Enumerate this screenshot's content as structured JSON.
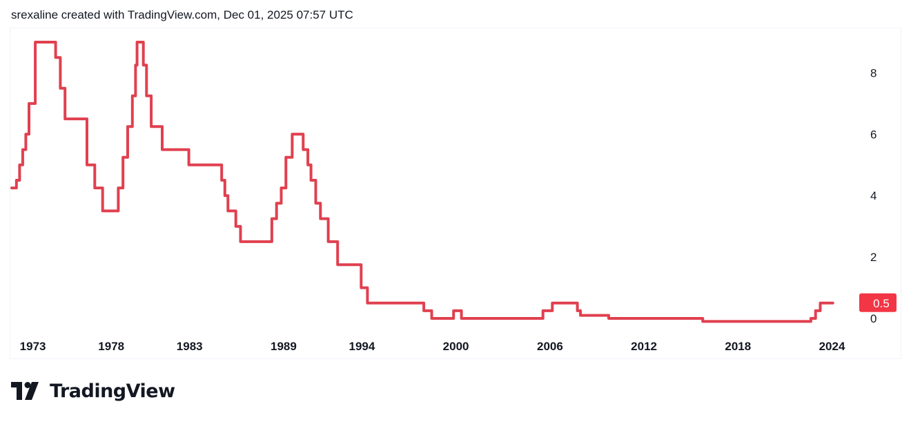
{
  "header": {
    "caption": "srexaline created with TradingView.com, Dec 01, 2025 07:57 UTC"
  },
  "brand": {
    "name": "TradingView",
    "logo_icon": "tradingview-logo-icon"
  },
  "colors": {
    "line": "#e0404f",
    "last_label_bg": "#f23645",
    "text": "#131722",
    "border": "#f0f3fa"
  },
  "chart_data": {
    "type": "line",
    "title": "",
    "xlabel": "",
    "ylabel": "",
    "x_ticks": [
      "1973",
      "1978",
      "1983",
      "1989",
      "1994",
      "2000",
      "2006",
      "2012",
      "2018",
      "2024"
    ],
    "y_ticks": [
      "0",
      "2",
      "4",
      "6",
      "8"
    ],
    "ylim": [
      0,
      9
    ],
    "xlim": [
      1972.0,
      2026.0
    ],
    "last_value_label": "0.5",
    "grid": false,
    "y_axis_position": "right",
    "series": [
      {
        "step": true,
        "points": [
          [
            1972.0,
            4.25
          ],
          [
            1972.3,
            4.5
          ],
          [
            1972.5,
            5.0
          ],
          [
            1972.7,
            5.5
          ],
          [
            1972.9,
            6.0
          ],
          [
            1973.1,
            7.0
          ],
          [
            1973.5,
            9.0
          ],
          [
            1974.8,
            8.5
          ],
          [
            1975.1,
            7.5
          ],
          [
            1975.4,
            6.5
          ],
          [
            1976.8,
            5.0
          ],
          [
            1977.3,
            4.25
          ],
          [
            1977.8,
            3.5
          ],
          [
            1978.8,
            4.25
          ],
          [
            1979.1,
            5.25
          ],
          [
            1979.4,
            6.25
          ],
          [
            1979.7,
            7.25
          ],
          [
            1979.9,
            8.25
          ],
          [
            1980.0,
            9.0
          ],
          [
            1980.4,
            8.25
          ],
          [
            1980.6,
            7.25
          ],
          [
            1980.9,
            6.25
          ],
          [
            1981.6,
            5.5
          ],
          [
            1983.3,
            5.0
          ],
          [
            1985.4,
            4.5
          ],
          [
            1985.6,
            4.0
          ],
          [
            1985.8,
            3.5
          ],
          [
            1986.3,
            3.0
          ],
          [
            1986.6,
            2.5
          ],
          [
            1988.6,
            3.25
          ],
          [
            1988.9,
            3.75
          ],
          [
            1989.2,
            4.25
          ],
          [
            1989.5,
            5.25
          ],
          [
            1989.9,
            6.0
          ],
          [
            1990.6,
            5.5
          ],
          [
            1990.9,
            5.0
          ],
          [
            1991.1,
            4.5
          ],
          [
            1991.4,
            3.75
          ],
          [
            1991.7,
            3.25
          ],
          [
            1992.2,
            2.5
          ],
          [
            1992.8,
            1.75
          ],
          [
            1994.3,
            1.0
          ],
          [
            1994.7,
            0.5
          ],
          [
            1998.3,
            0.25
          ],
          [
            1998.8,
            0.0
          ],
          [
            2000.2,
            0.25
          ],
          [
            2000.7,
            0.0
          ],
          [
            2005.9,
            0.25
          ],
          [
            2006.5,
            0.5
          ],
          [
            2008.1,
            0.25
          ],
          [
            2008.3,
            0.1
          ],
          [
            2010.1,
            0.0
          ],
          [
            2016.1,
            -0.1
          ],
          [
            2023.0,
            0.0
          ],
          [
            2023.3,
            0.25
          ],
          [
            2023.6,
            0.5
          ],
          [
            2024.4,
            0.5
          ]
        ]
      }
    ]
  }
}
